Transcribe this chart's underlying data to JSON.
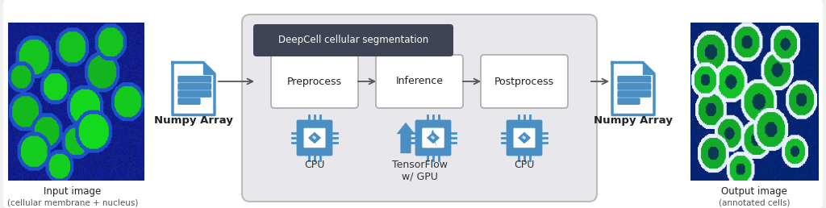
{
  "bg_color": "#f0f0f0",
  "white": "#ffffff",
  "title_box_color": "#3d4555",
  "title_text": "DeepCell cellular segmentation",
  "title_text_color": "#ffffff",
  "outer_box_edge": "#bbbbbb",
  "outer_box_face": "#e8e8ec",
  "inner_box_edge": "#aaaaaa",
  "process_boxes": [
    "Preprocess",
    "Inference",
    "Postprocess"
  ],
  "arrow_color": "#555555",
  "blue": "#4a8fc4",
  "blue_dark": "#2c6fa8",
  "numpy_label": "Numpy Array",
  "input_label1": "Input image",
  "input_label2": "(cellular membrane + nucleus)",
  "output_label1": "Output image",
  "output_label2": "(annotated cells)",
  "cpu_label": "CPU",
  "tf_label": "TensorFlow\nw/ GPU",
  "cpu2_label": "CPU"
}
